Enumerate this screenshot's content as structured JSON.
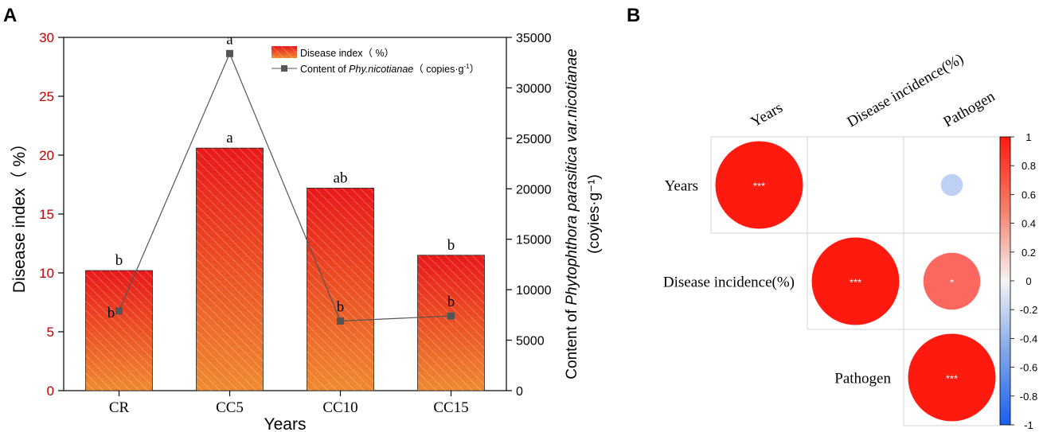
{
  "panel_a_label": "A",
  "panel_b_label": "B",
  "chart_data": [
    {
      "type": "bar+line",
      "xlabel": "Years",
      "ylabel": "Disease index（ %）",
      "y2label_prefix": "Content of ",
      "y2label_italic": "Phytophthora parasitica var.nicotianae",
      "y2label_line2": "(coyies·g⁻¹)",
      "categories": [
        "CR",
        "CC5",
        "CC10",
        "CC15"
      ],
      "ylim": [
        0,
        30
      ],
      "yticks": [
        "0",
        "5",
        "10",
        "15",
        "20",
        "25",
        "30"
      ],
      "y2lim": [
        0,
        35000
      ],
      "y2ticks": [
        "0",
        "5000",
        "10000",
        "15000",
        "20000",
        "25000",
        "30000",
        "35000"
      ],
      "series": [
        {
          "name": "Disease index（ %）",
          "kind": "bar",
          "values": [
            10.2,
            20.6,
            17.2,
            11.5
          ],
          "labels": [
            "b",
            "a",
            "ab",
            "b"
          ]
        },
        {
          "name": "Content of Phy.nicotianae（ copies·g⁻¹）",
          "kind": "line",
          "axis": "right",
          "values": [
            7900,
            33400,
            6900,
            7400
          ],
          "labels": [
            "b",
            "a",
            "b",
            "b"
          ]
        }
      ],
      "legend": {
        "bar_label": "Disease index（ %）",
        "line_prefix": "Content of ",
        "line_italic": "Phy.nicotianae",
        "line_suffix": "（ copies·g",
        "line_sup": "-1",
        "line_end": "）",
        "position": "top-right"
      },
      "colors": {
        "bar_top": "#e8191a",
        "bar_bottom": "#ee8a30",
        "line": "#555555",
        "axis_left": "#c00000",
        "axis_right": "#000000"
      }
    },
    {
      "type": "heatmap",
      "subtype": "correlation-circles",
      "row_labels": [
        "Years",
        "Disease incidence(%)",
        "Pathogen"
      ],
      "col_labels": [
        "Years",
        "Disease incidence(%)",
        "Pathogen"
      ],
      "cells": [
        {
          "row": 0,
          "col": 0,
          "value": 1.0,
          "sig": "***"
        },
        {
          "row": 0,
          "col": 1,
          "value": 0.0,
          "sig": ""
        },
        {
          "row": 0,
          "col": 2,
          "value": -0.25,
          "sig": ""
        },
        {
          "row": 1,
          "col": 1,
          "value": 1.0,
          "sig": "***"
        },
        {
          "row": 1,
          "col": 2,
          "value": 0.65,
          "sig": "*"
        },
        {
          "row": 2,
          "col": 2,
          "value": 1.0,
          "sig": "***"
        }
      ],
      "colorbar_ticks": [
        "1",
        "0.8",
        "0.6",
        "0.4",
        "0.2",
        "0",
        "-0.2",
        "-0.4",
        "-0.6",
        "-0.8",
        "-1"
      ],
      "colorbar_range": [
        -1,
        1
      ]
    }
  ]
}
